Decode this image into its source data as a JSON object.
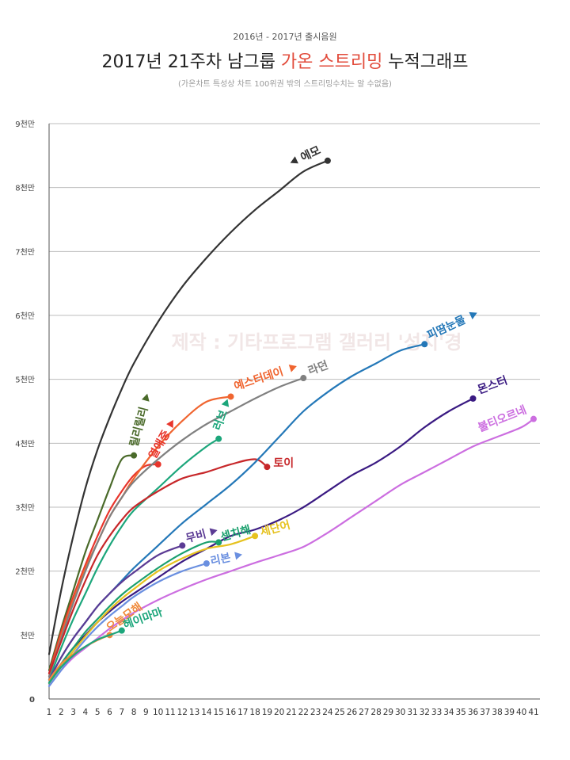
{
  "header": {
    "supertitle": "2016년 - 2017년 출시음원",
    "title_pre": "2017년 21주차 남그룹 ",
    "title_highlight": "가온 스트리밍",
    "title_post": " 누적그래프",
    "subtitle": "(가온차트 특성상 차트 100위권 밖의 스트리밍수치는 알 수없음)"
  },
  "watermark": "제작 : 기타프로그램 갤러리 '성지'경",
  "colors": {
    "highlight": "#e24b3b",
    "grid": "#bdbdbd",
    "axis": "#555555"
  },
  "chart_data": {
    "type": "line",
    "title": "2017년 21주차 남그룹 가온 스트리밍 누적그래프",
    "xlabel": "",
    "ylabel": "",
    "x": [
      1,
      2,
      3,
      4,
      5,
      6,
      7,
      8,
      9,
      10,
      11,
      12,
      13,
      14,
      15,
      16,
      17,
      18,
      19,
      20,
      21,
      22,
      23,
      24,
      25,
      26,
      27,
      28,
      29,
      30,
      31,
      32,
      33,
      34,
      35,
      36,
      37,
      38,
      39,
      40,
      41
    ],
    "xlim": [
      1,
      41
    ],
    "ylim": [
      0,
      90000000
    ],
    "y_ticks": [
      0,
      10000000,
      20000000,
      30000000,
      40000000,
      50000000,
      60000000,
      70000000,
      80000000,
      90000000
    ],
    "y_tick_labels": [
      "0",
      "천만",
      "2천만",
      "3천만",
      "4천만",
      "5천만",
      "6천만",
      "7천만",
      "8천만",
      "9천만"
    ],
    "grid": true,
    "legend": "none (labels placed at line ends)",
    "series": [
      {
        "name": "에모",
        "color": "#333333",
        "points": [
          [
            1,
            7000000
          ],
          [
            2,
            17000000
          ],
          [
            3,
            25500000
          ],
          [
            4,
            33000000
          ],
          [
            5,
            39000000
          ],
          [
            6,
            44000000
          ],
          [
            7,
            48500000
          ],
          [
            8,
            52500000
          ],
          [
            10,
            59000000
          ],
          [
            12,
            64500000
          ],
          [
            14,
            69000000
          ],
          [
            16,
            73000000
          ],
          [
            18,
            76500000
          ],
          [
            20,
            79500000
          ],
          [
            22,
            82500000
          ],
          [
            24,
            84200000
          ]
        ]
      },
      {
        "name": "릴리릴리",
        "color": "#4a6a2a",
        "points": [
          [
            1,
            4500000
          ],
          [
            2,
            11000000
          ],
          [
            3,
            17000000
          ],
          [
            4,
            23000000
          ],
          [
            5,
            28000000
          ],
          [
            6,
            33000000
          ],
          [
            7,
            37500000
          ],
          [
            8,
            38100000
          ]
        ]
      },
      {
        "name": "열애중",
        "color": "#e8352c",
        "points": [
          [
            1,
            4000000
          ],
          [
            2,
            10500000
          ],
          [
            3,
            16000000
          ],
          [
            4,
            21000000
          ],
          [
            5,
            25500000
          ],
          [
            6,
            29500000
          ],
          [
            7,
            32500000
          ],
          [
            8,
            35000000
          ],
          [
            9,
            36500000
          ],
          [
            10,
            36700000
          ]
        ]
      },
      {
        "name": "예스터데이",
        "color": "#f06530",
        "points": [
          [
            1,
            3500000
          ],
          [
            2,
            10000000
          ],
          [
            3,
            15500000
          ],
          [
            4,
            20500000
          ],
          [
            5,
            24500000
          ],
          [
            6,
            28500000
          ],
          [
            7,
            31500000
          ],
          [
            8,
            34500000
          ],
          [
            10,
            39500000
          ],
          [
            12,
            43500000
          ],
          [
            14,
            46500000
          ],
          [
            16,
            47300000
          ]
        ]
      },
      {
        "name": "러브",
        "color": "#1ca67b",
        "points": [
          [
            1,
            3000000
          ],
          [
            2,
            8000000
          ],
          [
            3,
            12500000
          ],
          [
            4,
            16500000
          ],
          [
            5,
            20500000
          ],
          [
            6,
            24000000
          ],
          [
            7,
            27000000
          ],
          [
            8,
            29500000
          ],
          [
            10,
            33000000
          ],
          [
            12,
            36500000
          ],
          [
            14,
            39500000
          ],
          [
            15,
            40700000
          ]
        ]
      },
      {
        "name": "라던",
        "color": "#808080",
        "points": [
          [
            1,
            3500000
          ],
          [
            2,
            9500000
          ],
          [
            3,
            15000000
          ],
          [
            4,
            20000000
          ],
          [
            5,
            24500000
          ],
          [
            6,
            28500000
          ],
          [
            7,
            31500000
          ],
          [
            8,
            34000000
          ],
          [
            10,
            37500000
          ],
          [
            12,
            40500000
          ],
          [
            14,
            43000000
          ],
          [
            16,
            45000000
          ],
          [
            18,
            47000000
          ],
          [
            20,
            48800000
          ],
          [
            22,
            50200000
          ]
        ]
      },
      {
        "name": "토이",
        "color": "#c7272a",
        "points": [
          [
            1,
            4000000
          ],
          [
            2,
            9000000
          ],
          [
            3,
            14000000
          ],
          [
            4,
            18500000
          ],
          [
            5,
            22500000
          ],
          [
            6,
            25500000
          ],
          [
            7,
            28000000
          ],
          [
            8,
            30000000
          ],
          [
            10,
            32500000
          ],
          [
            12,
            34500000
          ],
          [
            14,
            35500000
          ],
          [
            16,
            36700000
          ],
          [
            18,
            37500000
          ],
          [
            19,
            36300000
          ]
        ]
      },
      {
        "name": "피땀눈물",
        "color": "#2478b8",
        "points": [
          [
            1,
            3000000
          ],
          [
            2,
            6500000
          ],
          [
            3,
            9500000
          ],
          [
            4,
            12000000
          ],
          [
            5,
            14500000
          ],
          [
            6,
            16500000
          ],
          [
            7,
            18500000
          ],
          [
            8,
            20500000
          ],
          [
            10,
            24000000
          ],
          [
            12,
            27500000
          ],
          [
            14,
            30500000
          ],
          [
            16,
            33500000
          ],
          [
            18,
            37000000
          ],
          [
            20,
            41000000
          ],
          [
            22,
            45000000
          ],
          [
            24,
            48000000
          ],
          [
            26,
            50500000
          ],
          [
            28,
            52500000
          ],
          [
            30,
            54500000
          ],
          [
            32,
            55500000
          ]
        ]
      },
      {
        "name": "몬스터",
        "color": "#3a1a82",
        "points": [
          [
            1,
            2500000
          ],
          [
            2,
            5500000
          ],
          [
            3,
            8000000
          ],
          [
            4,
            10000000
          ],
          [
            5,
            12000000
          ],
          [
            6,
            13700000
          ],
          [
            7,
            15200000
          ],
          [
            8,
            16500000
          ],
          [
            10,
            19000000
          ],
          [
            12,
            21500000
          ],
          [
            14,
            23500000
          ],
          [
            16,
            25500000
          ],
          [
            18,
            26500000
          ],
          [
            20,
            28000000
          ],
          [
            22,
            30000000
          ],
          [
            24,
            32500000
          ],
          [
            26,
            35000000
          ],
          [
            28,
            37000000
          ],
          [
            30,
            39500000
          ],
          [
            32,
            42500000
          ],
          [
            34,
            45000000
          ],
          [
            36,
            47000000
          ]
        ]
      },
      {
        "name": "불티오르네",
        "color": "#cc6ee0",
        "points": [
          [
            1,
            2000000
          ],
          [
            2,
            4500000
          ],
          [
            3,
            6500000
          ],
          [
            4,
            8000000
          ],
          [
            5,
            9500000
          ],
          [
            6,
            11000000
          ],
          [
            7,
            12300000
          ],
          [
            8,
            13500000
          ],
          [
            10,
            15500000
          ],
          [
            12,
            17200000
          ],
          [
            14,
            18700000
          ],
          [
            16,
            20000000
          ],
          [
            18,
            21300000
          ],
          [
            20,
            22500000
          ],
          [
            22,
            23800000
          ],
          [
            24,
            26000000
          ],
          [
            26,
            28500000
          ],
          [
            28,
            31000000
          ],
          [
            30,
            33500000
          ],
          [
            32,
            35500000
          ],
          [
            34,
            37500000
          ],
          [
            36,
            39500000
          ],
          [
            38,
            41000000
          ],
          [
            40,
            42500000
          ],
          [
            41,
            43800000
          ]
        ]
      },
      {
        "name": "무비",
        "color": "#5b3b94",
        "points": [
          [
            1,
            3000000
          ],
          [
            2,
            6500000
          ],
          [
            3,
            9500000
          ],
          [
            4,
            12000000
          ],
          [
            5,
            14500000
          ],
          [
            6,
            16500000
          ],
          [
            7,
            18300000
          ],
          [
            8,
            19800000
          ],
          [
            10,
            22500000
          ],
          [
            12,
            24000000
          ]
        ]
      },
      {
        "name": "센치해",
        "color": "#1aa06e",
        "points": [
          [
            1,
            2500000
          ],
          [
            2,
            5500000
          ],
          [
            3,
            8000000
          ],
          [
            4,
            10500000
          ],
          [
            5,
            12500000
          ],
          [
            6,
            14500000
          ],
          [
            7,
            16300000
          ],
          [
            8,
            17800000
          ],
          [
            10,
            20500000
          ],
          [
            12,
            22800000
          ],
          [
            14,
            24500000
          ],
          [
            15,
            24500000
          ]
        ]
      },
      {
        "name": "세단어",
        "color": "#e6c21f",
        "points": [
          [
            1,
            2500000
          ],
          [
            2,
            5000000
          ],
          [
            3,
            7500000
          ],
          [
            4,
            9800000
          ],
          [
            5,
            12000000
          ],
          [
            6,
            14000000
          ],
          [
            7,
            15700000
          ],
          [
            8,
            17200000
          ],
          [
            10,
            20000000
          ],
          [
            12,
            22000000
          ],
          [
            14,
            23500000
          ],
          [
            16,
            24200000
          ],
          [
            18,
            25500000
          ]
        ]
      },
      {
        "name": "리본",
        "color": "#6a8fe0",
        "points": [
          [
            1,
            2000000
          ],
          [
            2,
            4500000
          ],
          [
            3,
            7000000
          ],
          [
            4,
            9300000
          ],
          [
            5,
            11300000
          ],
          [
            6,
            13000000
          ],
          [
            7,
            14500000
          ],
          [
            8,
            16000000
          ],
          [
            10,
            18300000
          ],
          [
            12,
            20000000
          ],
          [
            14,
            21200000
          ]
        ]
      },
      {
        "name": "오늘모해",
        "color": "#f08a3a",
        "points": [
          [
            1,
            3000000
          ],
          [
            2,
            5500000
          ],
          [
            3,
            7000000
          ],
          [
            4,
            8200000
          ],
          [
            5,
            9200000
          ],
          [
            6,
            10000000
          ]
        ]
      },
      {
        "name": "헤이마마",
        "color": "#1ca67b",
        "points": [
          [
            1,
            2500000
          ],
          [
            2,
            5000000
          ],
          [
            3,
            6800000
          ],
          [
            4,
            8200000
          ],
          [
            5,
            9300000
          ],
          [
            6,
            10000000
          ],
          [
            7,
            10700000
          ]
        ]
      }
    ]
  }
}
